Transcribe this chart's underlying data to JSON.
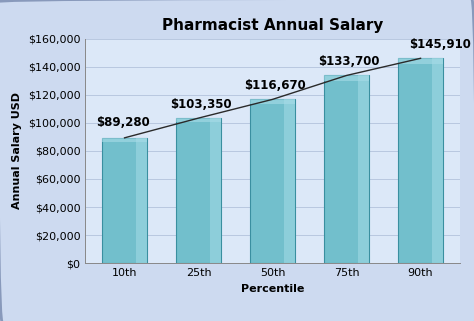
{
  "title": "Pharmacist Annual Salary",
  "categories": [
    "10th",
    "25th",
    "50th",
    "75th",
    "90th"
  ],
  "values": [
    89280,
    103350,
    116670,
    133700,
    145910
  ],
  "labels": [
    "$89,280",
    "$103,350",
    "$116,670",
    "$133,700",
    "$145,910"
  ],
  "xlabel": "Percentile",
  "ylabel": "Annual Salary USD",
  "ylim": [
    0,
    160000
  ],
  "yticks": [
    0,
    20000,
    40000,
    60000,
    80000,
    100000,
    120000,
    140000,
    160000
  ],
  "bar_color": "#72bfcc",
  "bar_edge_color": "#3a8fa0",
  "line_color": "#2a2a2a",
  "bg_color": "#cddaf0",
  "plot_bg_color": "#dce8f8",
  "grid_color": "#b8c8e0",
  "title_fontsize": 11,
  "label_fontsize": 8,
  "tick_fontsize": 8,
  "annotation_fontsize": 8.5,
  "bar_width": 0.6
}
